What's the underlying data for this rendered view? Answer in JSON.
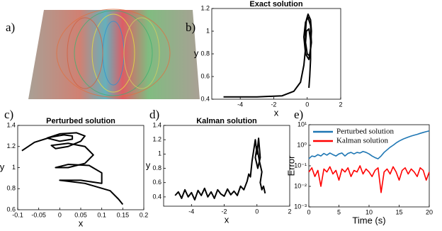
{
  "panel_labels": [
    "a)",
    "b)",
    "c)",
    "d)",
    "e)"
  ],
  "chart_data": [
    {
      "type": "line",
      "title": "Exact solution",
      "xlabel": "x",
      "ylabel": "y",
      "color": "#000000",
      "x": [
        -5,
        -3,
        -1.5,
        -0.8,
        -0.4,
        -0.2,
        -0.1,
        -0.1,
        -0.05,
        0.05,
        0.2,
        0.25,
        0.2,
        0.1,
        -0.1,
        -0.2,
        -0.1,
        0.05,
        0.2,
        0.25,
        0.15,
        0,
        -0.1,
        -0.05,
        0.1,
        0.2,
        0.2,
        0.15,
        0.1
      ],
      "values": [
        0.42,
        0.42,
        0.43,
        0.47,
        0.55,
        0.7,
        0.85,
        1.0,
        1.1,
        1.15,
        1.1,
        1.0,
        0.85,
        0.75,
        0.8,
        0.95,
        1.08,
        1.12,
        1.05,
        0.9,
        0.78,
        0.8,
        0.9,
        1.0,
        1.02,
        0.92,
        0.75,
        0.6,
        0.5
      ],
      "xlim": [
        -5.7,
        2
      ],
      "xticks": [
        -4,
        -2,
        0,
        2
      ],
      "ylim": [
        0.4,
        1.2
      ],
      "yticks": [
        0.4,
        0.6,
        0.8,
        1,
        1.2
      ]
    },
    {
      "type": "line",
      "title": "Perturbed solution",
      "xlabel": "x",
      "ylabel": "y",
      "color": "#000000",
      "x": [
        -0.09,
        -0.06,
        -0.02,
        0.01,
        0.03,
        0.03,
        0,
        -0.03,
        0,
        0.04,
        0.06,
        0.05,
        0.02,
        -0.01,
        -0.02,
        0.02,
        0.06,
        0.08,
        0.06,
        0.02,
        -0.01,
        0.02,
        0.07,
        0.1,
        0.1,
        0.05,
        0,
        0.06,
        0.12,
        0.14,
        0.15
      ],
      "values": [
        1.16,
        1.24,
        1.29,
        1.31,
        1.3,
        1.27,
        1.25,
        1.28,
        1.32,
        1.33,
        1.3,
        1.25,
        1.2,
        1.18,
        1.21,
        1.23,
        1.2,
        1.12,
        1.04,
        1.0,
        1.0,
        1.03,
        1.02,
        0.95,
        0.85,
        0.88,
        0.88,
        0.85,
        0.78,
        0.7,
        0.65
      ],
      "xlim": [
        -0.1,
        0.2
      ],
      "xticks": [
        -0.1,
        -0.05,
        0,
        0.05,
        0.1,
        0.15,
        0.2
      ],
      "ylim": [
        0.6,
        1.4
      ],
      "yticks": [
        0.6,
        0.8,
        1,
        1.2,
        1.4
      ]
    },
    {
      "type": "line",
      "title": "Kalman solution",
      "xlabel": "x",
      "ylabel": "y",
      "color": "#000000",
      "x": [
        -5,
        -4.8,
        -4.6,
        -4.4,
        -4.2,
        -4,
        -3.8,
        -3.6,
        -3.4,
        -3.2,
        -3,
        -2.8,
        -2.6,
        -2.4,
        -2.2,
        -2,
        -1.8,
        -1.6,
        -1.4,
        -1.2,
        -1,
        -0.8,
        -0.6,
        -0.5,
        -0.4,
        -0.3,
        -0.2,
        -0.1,
        0,
        0.1,
        0.2,
        0.05,
        -0.1,
        0,
        0.15,
        0.3,
        0.2,
        0.3,
        0.4,
        0.5
      ],
      "values": [
        0.42,
        0.47,
        0.38,
        0.5,
        0.4,
        0.46,
        0.36,
        0.49,
        0.42,
        0.52,
        0.4,
        0.47,
        0.38,
        0.5,
        0.44,
        0.41,
        0.51,
        0.43,
        0.48,
        0.42,
        0.55,
        0.5,
        0.62,
        0.72,
        0.68,
        0.9,
        1.05,
        1.2,
        1.0,
        1.22,
        0.95,
        0.8,
        0.95,
        1.1,
        0.9,
        0.75,
        0.6,
        0.5,
        0.55,
        0.45
      ],
      "xlim": [
        -5.7,
        2
      ],
      "xticks": [
        -4,
        -2,
        0,
        2
      ],
      "ylim": [
        0.27,
        1.4
      ],
      "yticks": [
        0.4,
        0.6,
        0.8,
        1,
        1.2,
        1.4
      ]
    },
    {
      "type": "line",
      "xlabel": "Time (s)",
      "ylabel": "Error",
      "yscale": "log",
      "legend": "upper left",
      "x": [
        0,
        0.5,
        1,
        1.5,
        2,
        2.5,
        3,
        3.5,
        4,
        4.5,
        5,
        5.5,
        6,
        6.5,
        7,
        7.5,
        8,
        8.5,
        9,
        9.5,
        10,
        10.5,
        11,
        11.5,
        12,
        12.5,
        13,
        13.5,
        14,
        14.5,
        15,
        15.5,
        16,
        16.5,
        17,
        17.5,
        18,
        18.5,
        19,
        19.5,
        20
      ],
      "series": [
        {
          "name": "Perturbed solution",
          "color": "#1f77b4",
          "values": [
            0.22,
            0.3,
            0.28,
            0.35,
            0.3,
            0.4,
            0.33,
            0.42,
            0.35,
            0.3,
            0.38,
            0.42,
            0.3,
            0.4,
            0.45,
            0.38,
            0.45,
            0.42,
            0.5,
            0.45,
            0.38,
            0.3,
            0.25,
            0.22,
            0.3,
            0.45,
            0.6,
            0.8,
            1.0,
            1.3,
            1.6,
            1.9,
            2.2,
            2.5,
            2.8,
            3.1,
            3.4,
            3.8,
            4.2,
            4.6,
            5.0
          ]
        },
        {
          "name": "Kalman solution",
          "color": "#ff0000",
          "values": [
            0.05,
            0.08,
            0.03,
            0.06,
            0.01,
            0.07,
            0.05,
            0.09,
            0.04,
            0.06,
            0.02,
            0.07,
            0.05,
            0.08,
            0.03,
            0.06,
            0.05,
            0.1,
            0.04,
            0.07,
            0.05,
            0.03,
            0.06,
            0.08,
            0.005,
            0.05,
            0.07,
            0.04,
            0.09,
            0.05,
            0.02,
            0.06,
            0.08,
            0.04,
            0.07,
            0.05,
            0.03,
            0.08,
            0.06,
            0.02,
            0.05
          ]
        }
      ],
      "xlim": [
        0,
        20
      ],
      "xticks": [
        0,
        5,
        10,
        15,
        20
      ],
      "ylim": [
        0.001,
        10
      ],
      "yticks": [
        {
          "value": 0.001,
          "label": "10⁻³"
        },
        {
          "value": 0.01,
          "label": "10⁻²"
        },
        {
          "value": 0.1,
          "label": "10⁻¹"
        },
        {
          "value": 1,
          "label": "10⁰"
        },
        {
          "value": 10,
          "label": "10¹"
        }
      ]
    }
  ]
}
